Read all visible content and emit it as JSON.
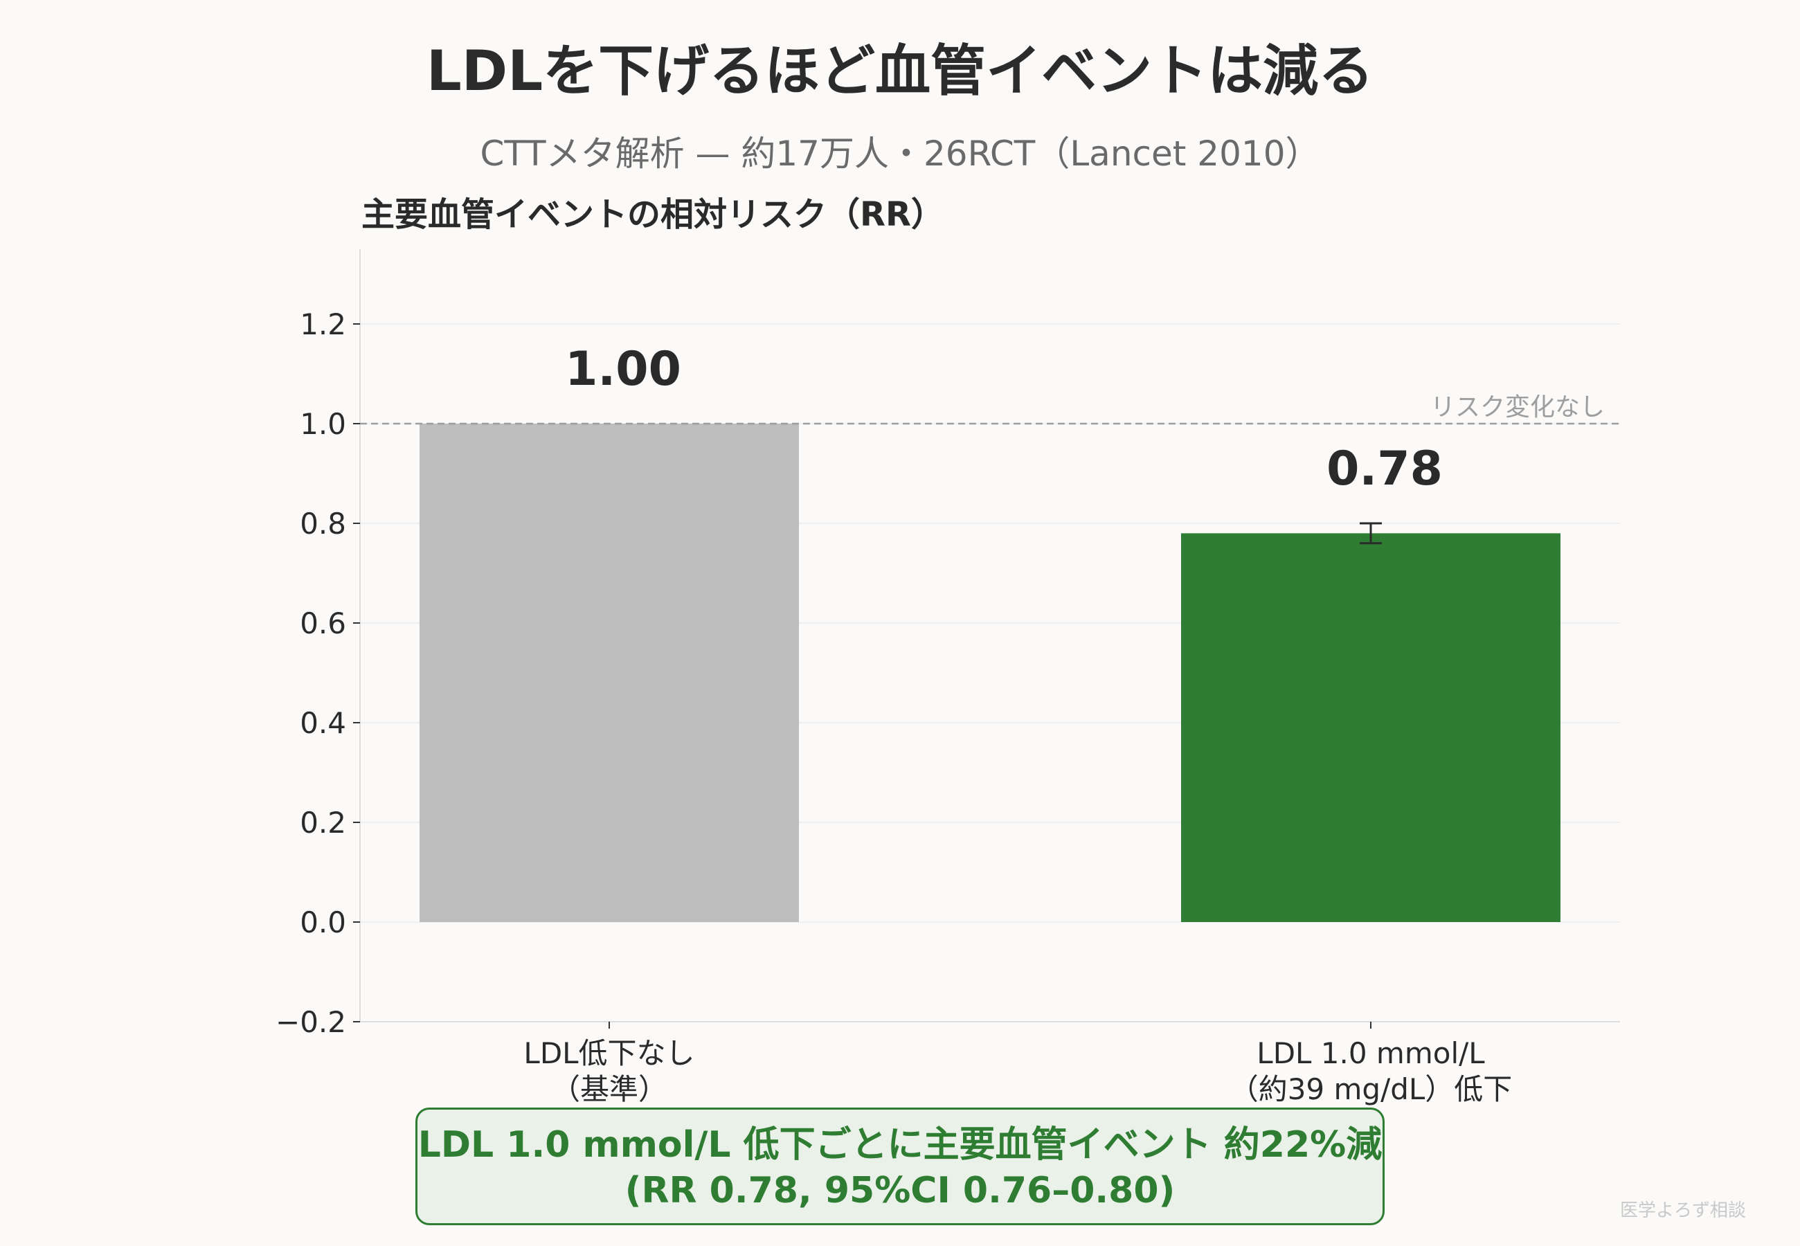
{
  "title": "LDLを下げるほど血管イベントは減る",
  "subtitle": "CTTメタ解析 — 約17万人・26RCT（Lancet 2010）",
  "chart_data": {
    "type": "bar",
    "ylabel": "主要血管イベントの相対リスク（RR）",
    "ylim": [
      -0.2,
      1.35
    ],
    "yticks": [
      -0.2,
      0.0,
      0.2,
      0.4,
      0.6,
      0.8,
      1.0,
      1.2
    ],
    "ytick_labels": [
      "−0.2",
      "0.0",
      "0.2",
      "0.4",
      "0.6",
      "0.8",
      "1.0",
      "1.2"
    ],
    "grid": "horizontal",
    "categories": [
      [
        "LDL低下なし",
        "（基準）"
      ],
      [
        "LDL 1.0 mmol/L",
        "（約39 mg/dL）低下"
      ]
    ],
    "values": [
      1.0,
      0.78
    ],
    "value_labels": [
      "1.00",
      "0.78"
    ],
    "colors": [
      "#bdbdbd",
      "#2e7d32"
    ],
    "error_bars": [
      null,
      [
        0.76,
        0.8
      ]
    ],
    "reference_line": {
      "y": 1.0,
      "label": "リスク変化なし",
      "color": "#9e9e9e"
    }
  },
  "callout": {
    "line1": "LDL 1.0 mmol/L 低下ごとに主要血管イベント 約22%減",
    "line2": "(RR 0.78, 95%CI 0.76–0.80)"
  },
  "credit": "医学よろず相談"
}
